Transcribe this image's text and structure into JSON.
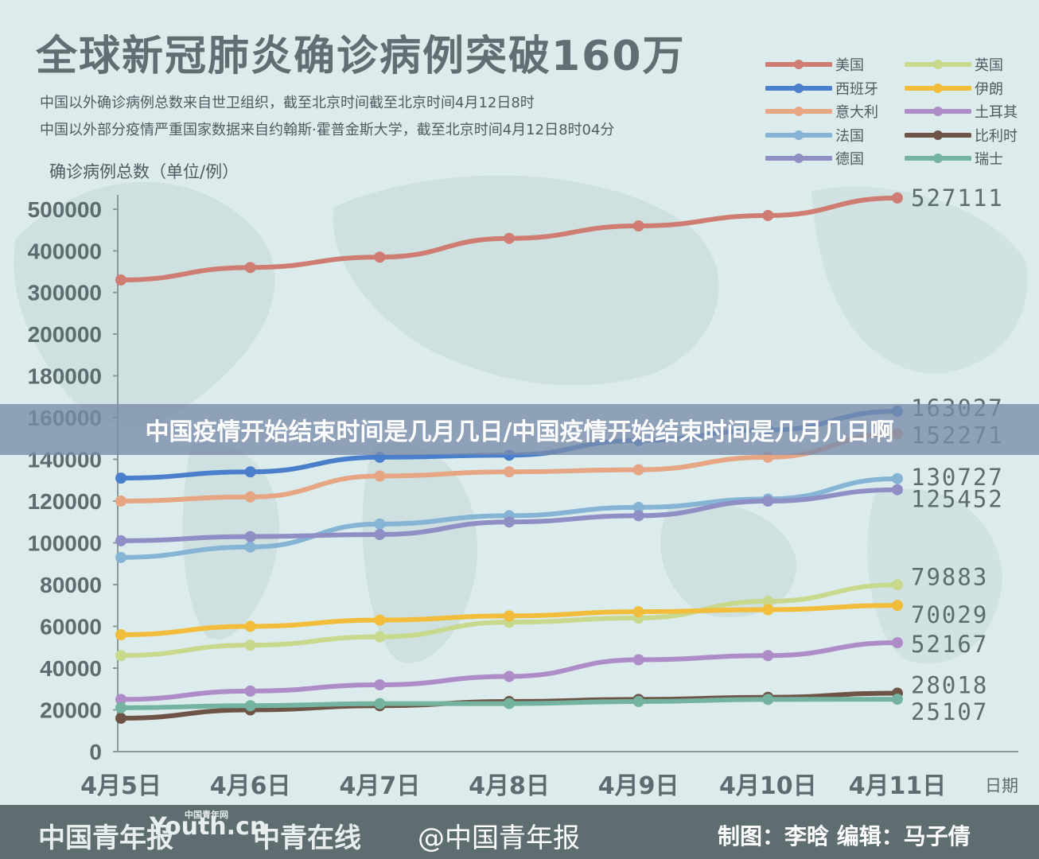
{
  "header": {
    "title": "全球新冠肺炎确诊病例突破160万",
    "source_line_1": "中国以外确诊病例总数来自世卫组织，截至北京时间截至北京时间4月12日8时",
    "source_line_2": "中国以外部分疫情严重国家数据来自约翰斯·霍普金斯大学，截至北京时间4月12日8时04分"
  },
  "banner": {
    "text": "中国疫情开始结束时间是几月几日/中国疫情开始结束时间是几月几日啊"
  },
  "footer": {
    "logo_1": "中国青年报",
    "logo_2": "Youth.cn",
    "logo_2_small": "中国青年网",
    "logo_3": "中青在线",
    "weibo": "@中国青年报",
    "credits": "制图：李晗   编辑：马子倩"
  },
  "chart_data": {
    "type": "line",
    "ylabel": "确诊病例总数（单位/例）",
    "xlabel": "日期",
    "categories": [
      "4月5日",
      "4月6日",
      "4月7日",
      "4月8日",
      "4月9日",
      "4月10日",
      "4月11日"
    ],
    "y_tick_labels": [
      "0",
      "20000",
      "40000",
      "60000",
      "80000",
      "100000",
      "120000",
      "140000",
      "160000",
      "180000",
      "200000",
      "300000",
      "400000",
      "500000"
    ],
    "y_scale": "piecewise: linear 0–200000 with 20000 per tick, then 100000 per tick up to 500000",
    "legend_placement": "top-right",
    "series": [
      {
        "name": "美国",
        "color": "#cf7c72",
        "values": [
          330000,
          360000,
          385000,
          430000,
          460000,
          485000,
          527111
        ],
        "end_label": "527111"
      },
      {
        "name": "西班牙",
        "color": "#4a7fcb",
        "values": [
          131000,
          134000,
          141000,
          142000,
          149000,
          154000,
          163027
        ],
        "end_label": "163027"
      },
      {
        "name": "意大利",
        "color": "#e6a583",
        "values": [
          120000,
          122000,
          132000,
          134000,
          135000,
          141000,
          152271
        ],
        "end_label": "152271"
      },
      {
        "name": "法国",
        "color": "#86b4d4",
        "values": [
          93000,
          98000,
          109000,
          113000,
          117000,
          121000,
          130727
        ],
        "end_label": "130727"
      },
      {
        "name": "德国",
        "color": "#8f8fc6",
        "values": [
          101000,
          103000,
          104000,
          110000,
          113000,
          120000,
          125452
        ],
        "end_label": "125452"
      },
      {
        "name": "英国",
        "color": "#c8d98d",
        "values": [
          46000,
          51000,
          55000,
          62000,
          64000,
          72000,
          79883
        ],
        "end_label": "79883"
      },
      {
        "name": "伊朗",
        "color": "#f2bd3a",
        "values": [
          56000,
          60000,
          63000,
          65000,
          67000,
          68000,
          70029
        ],
        "end_label": "70029"
      },
      {
        "name": "土耳其",
        "color": "#ae8cc8",
        "values": [
          25000,
          29000,
          32000,
          36000,
          44000,
          46000,
          52167
        ],
        "end_label": "52167"
      },
      {
        "name": "比利时",
        "color": "#6e5446",
        "values": [
          16000,
          20000,
          22000,
          24000,
          25000,
          26000,
          28018
        ],
        "end_label": "28018"
      },
      {
        "name": "瑞士",
        "color": "#74b3a0",
        "values": [
          21000,
          22000,
          23000,
          23000,
          24000,
          25000,
          25107
        ],
        "end_label": "25107"
      }
    ]
  }
}
